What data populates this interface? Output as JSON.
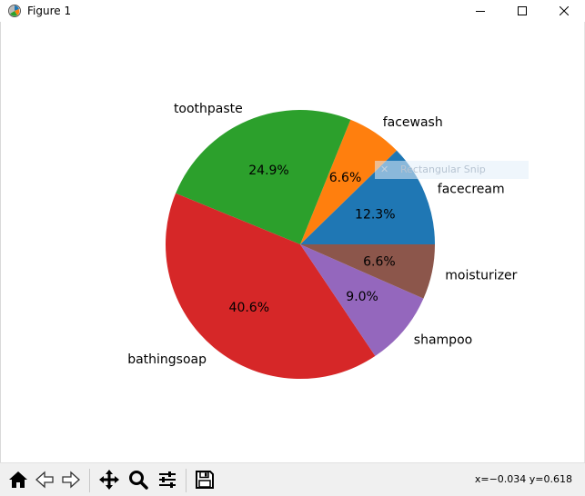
{
  "window": {
    "title": "Figure 1",
    "icon": "matplotlib-logo-icon",
    "controls": [
      "minimize-icon",
      "maximize-icon",
      "close-icon"
    ]
  },
  "overlay": {
    "text": "Rectangular Snip"
  },
  "toolbar": {
    "buttons": [
      "home-icon",
      "back-icon",
      "forward-icon",
      "pan-icon",
      "zoom-icon",
      "configure-subplots-icon",
      "save-icon"
    ],
    "coords": "x=−0.034 y=0.618"
  },
  "chart_data": {
    "type": "pie",
    "title": "",
    "start_angle_deg": 0,
    "counterclockwise": true,
    "slices": [
      {
        "label": "facecream",
        "value": 12.3,
        "pct_label": "12.3%",
        "color": "#1f77b4"
      },
      {
        "label": "facewash",
        "value": 6.6,
        "pct_label": "6.6%",
        "color": "#ff7f0e"
      },
      {
        "label": "toothpaste",
        "value": 24.9,
        "pct_label": "24.9%",
        "color": "#2ca02c"
      },
      {
        "label": "bathingsoap",
        "value": 40.6,
        "pct_label": "40.6%",
        "color": "#d62728"
      },
      {
        "label": "shampoo",
        "value": 9.0,
        "pct_label": "9.0%",
        "color": "#9467bd"
      },
      {
        "label": "moisturizer",
        "value": 6.6,
        "pct_label": "6.6%",
        "color": "#8c564b"
      }
    ]
  }
}
